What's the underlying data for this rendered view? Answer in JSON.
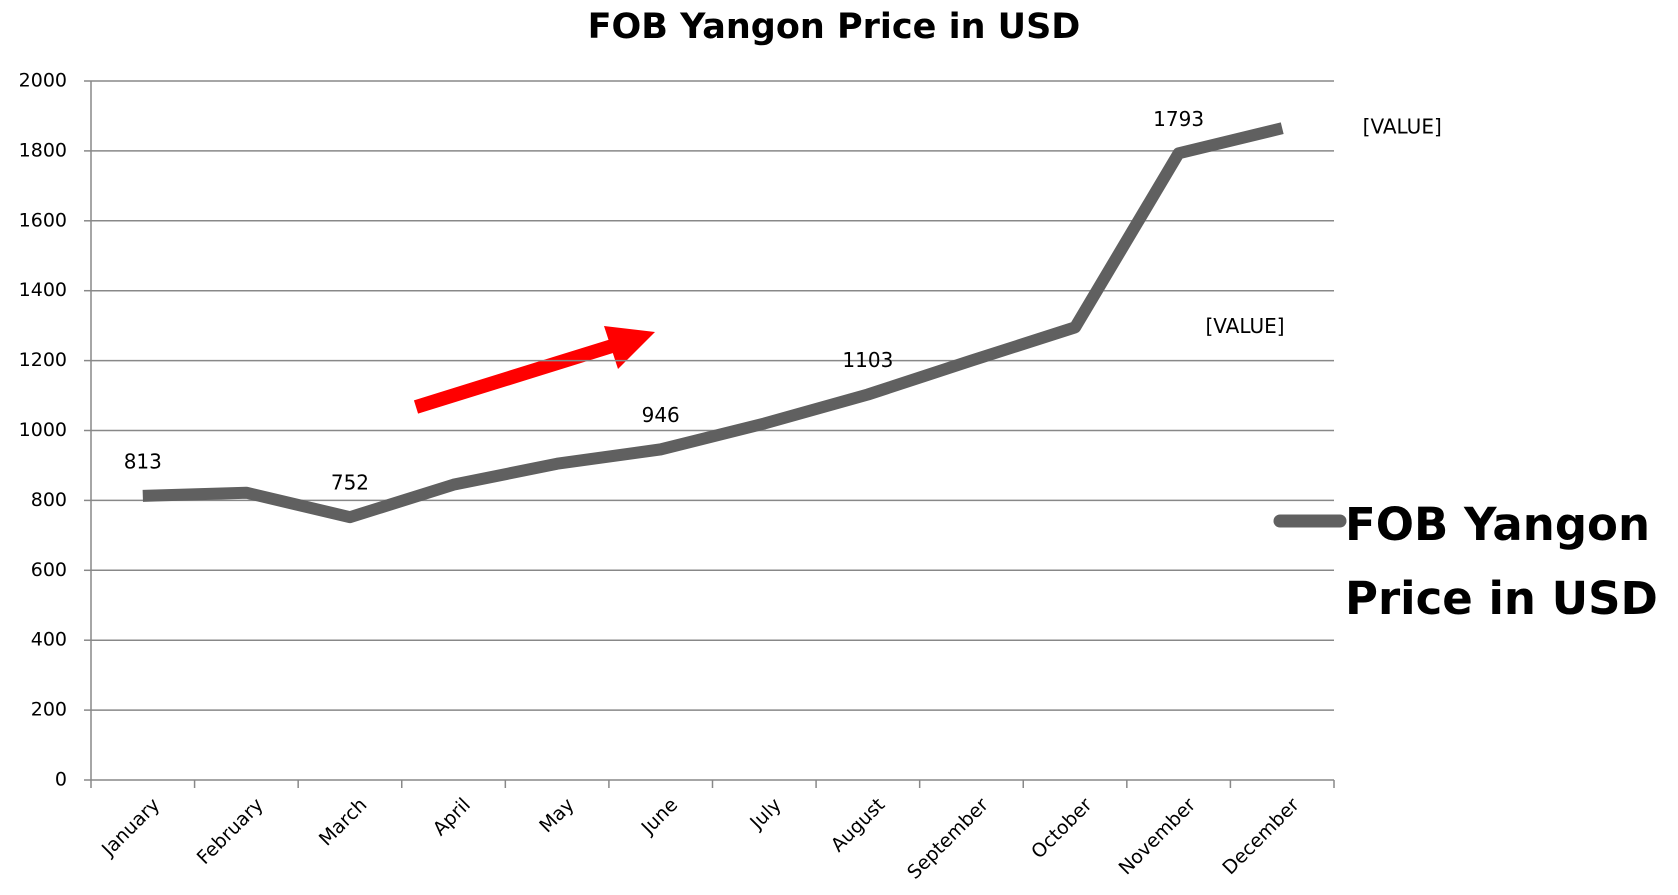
{
  "chart_data": {
    "type": "line",
    "title": "FOB Yangon Price in USD",
    "categories": [
      "January",
      "February",
      "March",
      "April",
      "May",
      "June",
      "July",
      "August",
      "September",
      "October",
      "November",
      "December"
    ],
    "series": [
      {
        "name": "FOB Yangon Price in USD",
        "color": "#606060",
        "values": [
          813,
          822,
          752,
          845,
          905,
          946,
          1020,
          1103,
          1200,
          1295,
          1793,
          1865
        ],
        "value_labels": [
          "813",
          null,
          "752",
          null,
          null,
          "946",
          null,
          "1103",
          null,
          "[VALUE]",
          "1793",
          "[VALUE]"
        ]
      }
    ],
    "ylim": [
      0,
      2000
    ],
    "yticks": [
      0,
      200,
      400,
      600,
      800,
      1000,
      1200,
      1400,
      1600,
      1800,
      2000
    ],
    "grid": true,
    "legend": "right"
  }
}
